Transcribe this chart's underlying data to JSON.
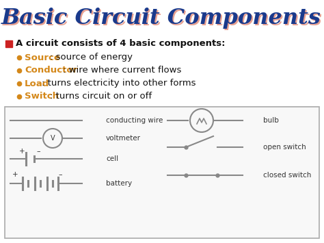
{
  "title": "Basic Circuit Components",
  "title_color": "#1a3a8c",
  "title_shadow_color": "#e8a090",
  "bg_color": "#ffffff",
  "header_text": "A circuit consists of 4 basic components:",
  "header_color": "#111111",
  "bullet_color": "#d4881a",
  "bullets": [
    {
      "label": "Source",
      "rest": ": source of energy"
    },
    {
      "label": "Conductor",
      "rest": ": wire where current flows"
    },
    {
      "label": "Load",
      "rest": ": turns electricity into other forms"
    },
    {
      "label": "Switch",
      "rest": ": turns circuit on or off"
    }
  ],
  "diagram_labels_left": [
    "conducting wire",
    "voltmeter",
    "cell",
    "battery"
  ],
  "diagram_labels_right": [
    "bulb",
    "open switch",
    "closed switch"
  ],
  "line_color": "#888888",
  "text_color": "#333333",
  "box_edge_color": "#aaaaaa",
  "box_face_color": "#f8f8f8"
}
